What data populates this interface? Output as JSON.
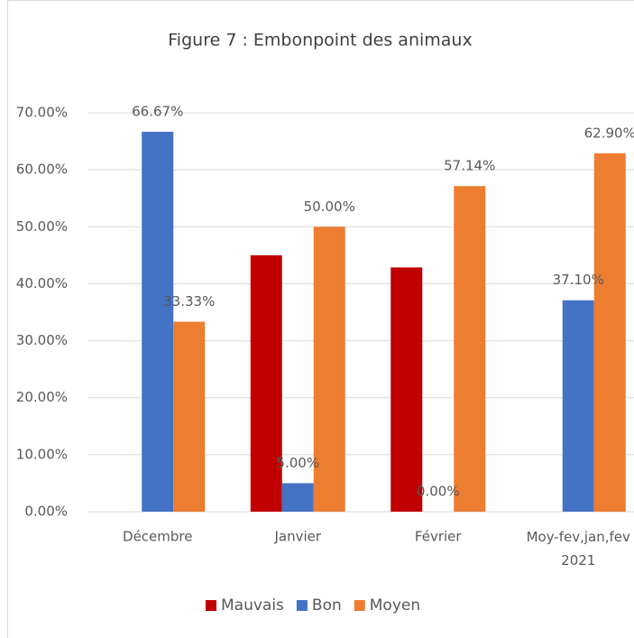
{
  "chart_data": {
    "type": "bar",
    "title": "Figure 7 : Embonpoint des animaux",
    "categories": [
      "Décembre",
      "Janvier",
      "Février",
      "Moy-fev,jan,fev 2021"
    ],
    "series": [
      {
        "name": "Mauvais",
        "color": "#c00000",
        "values": [
          null,
          45,
          42.86,
          null
        ]
      },
      {
        "name": "Bon",
        "color": "#4472c4",
        "values": [
          66.67,
          5,
          0,
          37.1
        ],
        "value_labels": [
          "66.67%",
          "5.00%",
          "0.00%",
          "37.10%"
        ]
      },
      {
        "name": "Moyen",
        "color": "#ed7d31",
        "values": [
          33.33,
          50,
          57.14,
          62.9
        ],
        "value_labels": [
          "33.33%",
          "50.00%",
          "57.14%",
          "62.90%"
        ]
      }
    ],
    "ylim": [
      0,
      70
    ],
    "yticks": [
      {
        "value": 0,
        "label": "0.00%"
      },
      {
        "value": 10,
        "label": "10.00%"
      },
      {
        "value": 20,
        "label": "20.00%"
      },
      {
        "value": 30,
        "label": "30.00%"
      },
      {
        "value": 40,
        "label": "40.00%"
      },
      {
        "value": 50,
        "label": "50.00%"
      },
      {
        "value": 60,
        "label": "60.00%"
      },
      {
        "value": 70,
        "label": "70.00%"
      }
    ],
    "grid": true,
    "legend": "bottom"
  }
}
